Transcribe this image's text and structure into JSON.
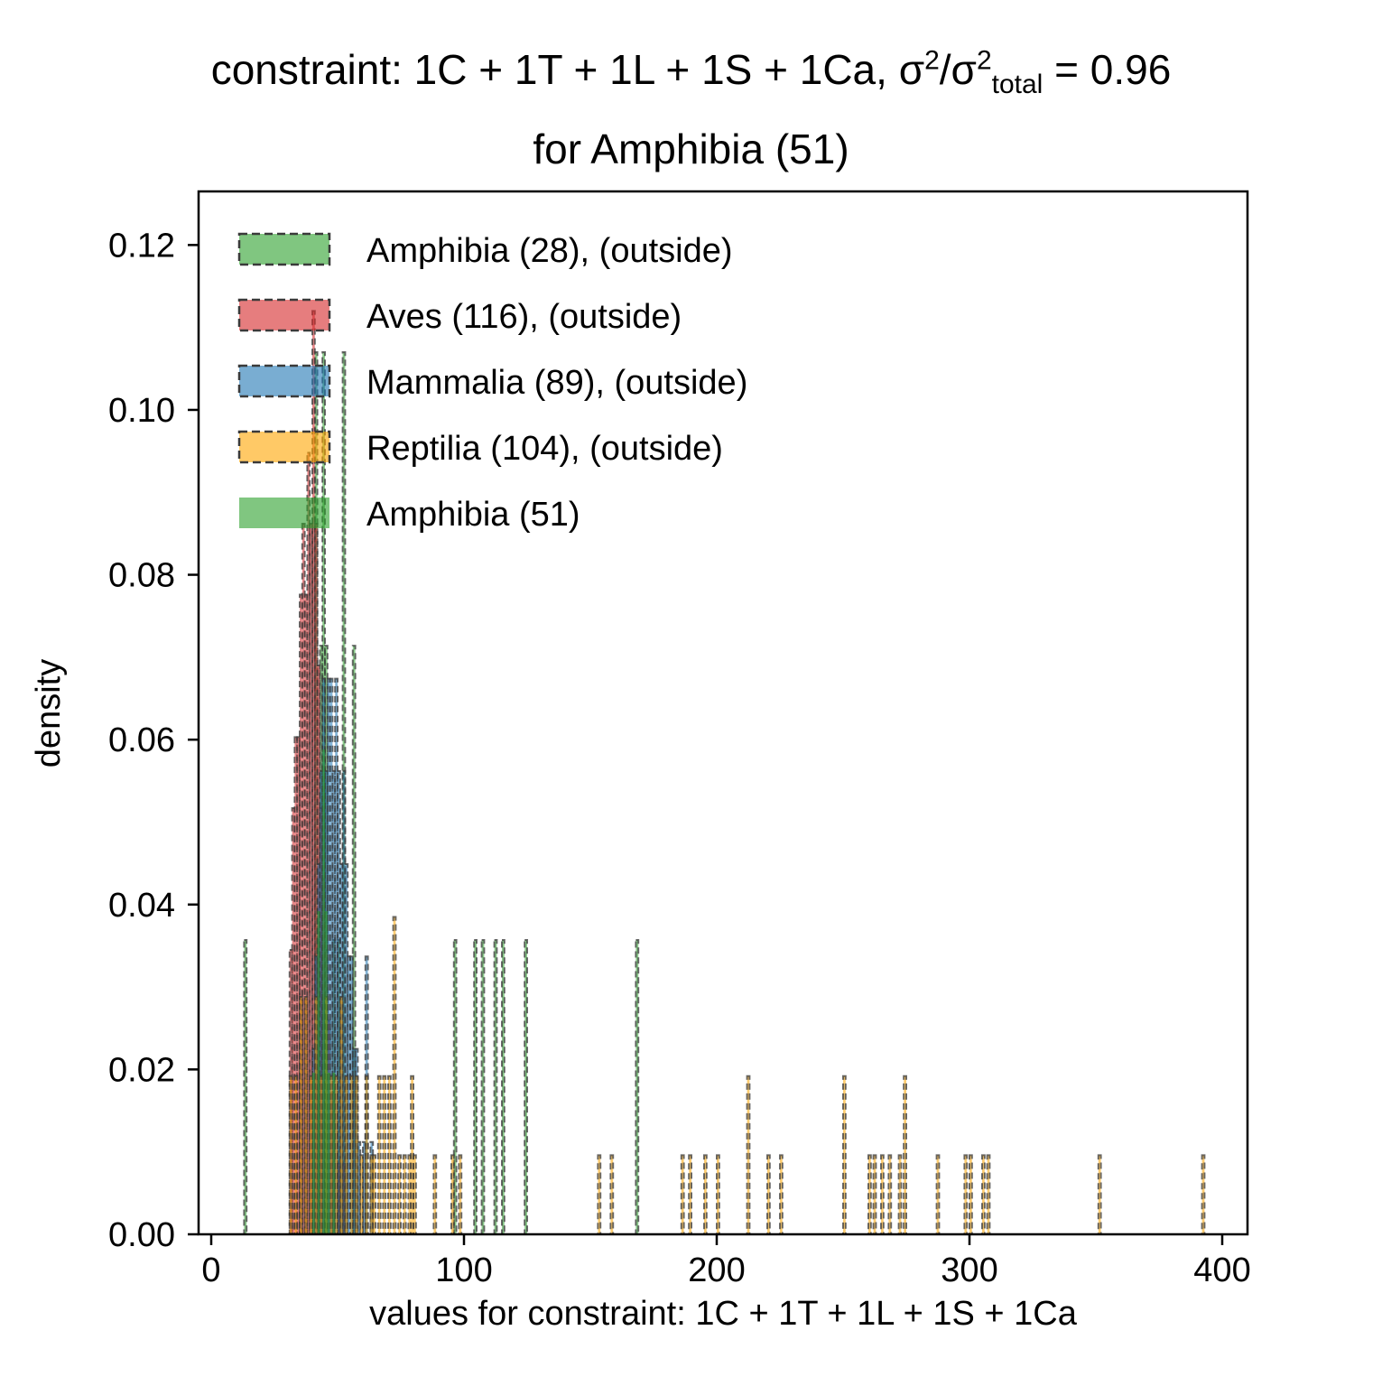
{
  "chart_data": {
    "type": "bar",
    "title_main": "constraint: 1C + 1T + 1L + 1S + 1Ca, σ",
    "title_sup1": "2",
    "title_slash": "/σ",
    "title_sup2": "2",
    "title_sub": "total",
    "title_value": " =  0.96",
    "subtitle": "for Amphibia (51)",
    "xlabel": "values for constraint: 1C + 1T + 1L + 1S + 1Ca",
    "ylabel": "density",
    "xlim": [
      -5,
      410
    ],
    "ylim": [
      0,
      0.1265
    ],
    "xticks": [
      0,
      100,
      200,
      300,
      400
    ],
    "yticks": [
      0.0,
      0.02,
      0.04,
      0.06,
      0.08,
      0.1,
      0.12
    ],
    "xtick_labels": [
      "0",
      "100",
      "200",
      "300",
      "400"
    ],
    "ytick_labels": [
      "0.00",
      "0.02",
      "0.04",
      "0.06",
      "0.08",
      "0.10",
      "0.12"
    ],
    "legend_position": "upper-left",
    "series": [
      {
        "name": "Amphibia (28), (outside)",
        "color": "#2ca02c",
        "style": "dashed-outline",
        "bin_width": 1.0,
        "bins": [
          [
            13,
            0.0357
          ],
          [
            41,
            0.107
          ],
          [
            42,
            0.0357
          ],
          [
            43,
            0.0714
          ],
          [
            44,
            0.107
          ],
          [
            45,
            0.0714
          ],
          [
            48,
            0.0357
          ],
          [
            50,
            0.0357
          ],
          [
            52,
            0.107
          ],
          [
            56,
            0.0714
          ],
          [
            96,
            0.0357
          ],
          [
            104,
            0.0357
          ],
          [
            107,
            0.0357
          ],
          [
            112,
            0.0357
          ],
          [
            115,
            0.0357
          ],
          [
            124,
            0.0357
          ],
          [
            168,
            0.0357
          ]
        ]
      },
      {
        "name": "Aves (116), (outside)",
        "color": "#d62728",
        "style": "dashed-outline",
        "bin_width": 1.0,
        "bins": [
          [
            31,
            0.0345
          ],
          [
            32,
            0.0517
          ],
          [
            33,
            0.0603
          ],
          [
            34,
            0.0603
          ],
          [
            35,
            0.0776
          ],
          [
            36,
            0.0862
          ],
          [
            37,
            0.0776
          ],
          [
            38,
            0.0948
          ],
          [
            39,
            0.0862
          ],
          [
            40,
            0.112
          ],
          [
            41,
            0.0862
          ],
          [
            42,
            0.069
          ],
          [
            43,
            0.0517
          ],
          [
            44,
            0.0431
          ],
          [
            45,
            0.0345
          ],
          [
            46,
            0.0259
          ],
          [
            47,
            0.0172
          ],
          [
            48,
            0.0172
          ],
          [
            50,
            0.0086
          ],
          [
            52,
            0.0086
          ]
        ]
      },
      {
        "name": "Mammalia (89), (outside)",
        "color": "#1f77b4",
        "style": "dashed-outline",
        "bin_width": 1.0,
        "bins": [
          [
            40,
            0.0225
          ],
          [
            41,
            0.0337
          ],
          [
            42,
            0.0449
          ],
          [
            43,
            0.0562
          ],
          [
            44,
            0.0674
          ],
          [
            45,
            0.0562
          ],
          [
            46,
            0.0674
          ],
          [
            47,
            0.0674
          ],
          [
            48,
            0.0562
          ],
          [
            49,
            0.0674
          ],
          [
            50,
            0.0562
          ],
          [
            51,
            0.0449
          ],
          [
            52,
            0.0562
          ],
          [
            53,
            0.0449
          ],
          [
            54,
            0.0337
          ],
          [
            55,
            0.0337
          ],
          [
            56,
            0.0225
          ],
          [
            57,
            0.0225
          ],
          [
            58,
            0.0112
          ],
          [
            60,
            0.0112
          ],
          [
            61,
            0.0337
          ],
          [
            63,
            0.0112
          ]
        ]
      },
      {
        "name": "Reptilia (104), (outside)",
        "color": "#ffa500",
        "style": "dashed-outline",
        "bin_width": 1.0,
        "bins": [
          [
            31,
            0.0192
          ],
          [
            33,
            0.0192
          ],
          [
            35,
            0.0288
          ],
          [
            37,
            0.0288
          ],
          [
            39,
            0.0192
          ],
          [
            41,
            0.0288
          ],
          [
            43,
            0.0192
          ],
          [
            45,
            0.0288
          ],
          [
            47,
            0.0192
          ],
          [
            49,
            0.0192
          ],
          [
            51,
            0.0288
          ],
          [
            53,
            0.0192
          ],
          [
            55,
            0.0192
          ],
          [
            57,
            0.0192
          ],
          [
            59,
            0.0096
          ],
          [
            61,
            0.0192
          ],
          [
            63,
            0.0096
          ],
          [
            64,
            0.0096
          ],
          [
            66,
            0.0192
          ],
          [
            68,
            0.0192
          ],
          [
            70,
            0.0192
          ],
          [
            72,
            0.0385
          ],
          [
            74,
            0.0096
          ],
          [
            76,
            0.0096
          ],
          [
            78,
            0.0096
          ],
          [
            79,
            0.0192
          ],
          [
            80,
            0.0096
          ],
          [
            88,
            0.0096
          ],
          [
            95,
            0.0096
          ],
          [
            98,
            0.0096
          ],
          [
            153,
            0.0096
          ],
          [
            158,
            0.0096
          ],
          [
            186,
            0.0096
          ],
          [
            189,
            0.0096
          ],
          [
            195,
            0.0096
          ],
          [
            200,
            0.0096
          ],
          [
            212,
            0.0192
          ],
          [
            220,
            0.0096
          ],
          [
            225,
            0.0096
          ],
          [
            250,
            0.0192
          ],
          [
            260,
            0.0096
          ],
          [
            262,
            0.0096
          ],
          [
            265,
            0.0096
          ],
          [
            268,
            0.0096
          ],
          [
            272,
            0.0096
          ],
          [
            274,
            0.0192
          ],
          [
            287,
            0.0096
          ],
          [
            298,
            0.0096
          ],
          [
            300,
            0.0096
          ],
          [
            305,
            0.0096
          ],
          [
            307,
            0.0096
          ],
          [
            351,
            0.0096
          ],
          [
            392,
            0.0096
          ]
        ]
      },
      {
        "name": "Amphibia (51)",
        "color": "#2ca02c",
        "style": "filled",
        "bin_width": 1.0,
        "bins": [
          [
            40,
            0.0196
          ],
          [
            42,
            0.0392
          ],
          [
            44,
            0.0588
          ],
          [
            45,
            0.0392
          ],
          [
            46,
            0.0196
          ],
          [
            48,
            0.0196
          ]
        ]
      }
    ]
  }
}
